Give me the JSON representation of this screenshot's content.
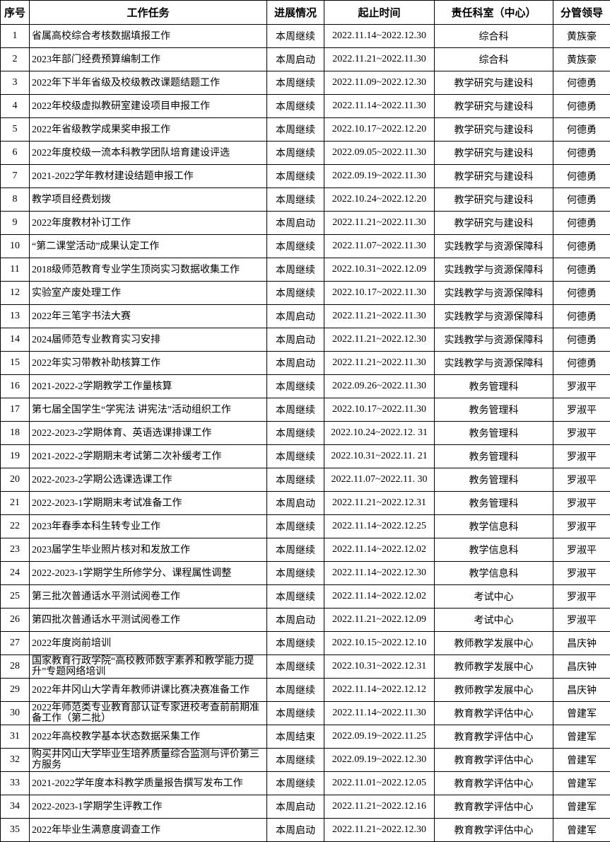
{
  "headers": [
    "序号",
    "工作任务",
    "进展情况",
    "起止时间",
    "责任科室（中心）",
    "分管领导"
  ],
  "rows": [
    [
      "1",
      "省属高校综合考核数据填报工作",
      "本周继续",
      "2022.11.14~2022.12.30",
      "综合科",
      "黄族豪"
    ],
    [
      "2",
      "2023年部门经费预算编制工作",
      "本周启动",
      "2022.11.21~2022.11.30",
      "综合科",
      "黄族豪"
    ],
    [
      "3",
      "2022年下半年省级及校级教改课题结题工作",
      "本周继续",
      "2022.11.09~2022.12.30",
      "教学研究与建设科",
      "何德勇"
    ],
    [
      "4",
      "2022年校级虚拟教研室建设项目申报工作",
      "本周继续",
      "2022.11.14~2022.11.30",
      "教学研究与建设科",
      "何德勇"
    ],
    [
      "5",
      "2022年省级教学成果奖申报工作",
      "本周继续",
      "2022.10.17~2022.12.20",
      "教学研究与建设科",
      "何德勇"
    ],
    [
      "6",
      "2022年度校级一流本科教学团队培育建设评选",
      "本周继续",
      "2022.09.05~2022.11.30",
      "教学研究与建设科",
      "何德勇"
    ],
    [
      "7",
      "2021-2022学年教材建设结题申报工作",
      "本周继续",
      "2022.09.19~2022.11.30",
      "教学研究与建设科",
      "何德勇"
    ],
    [
      "8",
      "教学项目经费划拨",
      "本周继续",
      "2022.10.24~2022.12.20",
      "教学研究与建设科",
      "何德勇"
    ],
    [
      "9",
      "2022年度教材补订工作",
      "本周启动",
      "2022.11.21~2022.11.30",
      "教学研究与建设科",
      "何德勇"
    ],
    [
      "10",
      "“第二课堂活动”成果认定工作",
      "本周继续",
      "2022.11.07~2022.11.30",
      "实践教学与资源保障科",
      "何德勇"
    ],
    [
      "11",
      "2018级师范教育专业学生顶岗实习数据收集工作",
      "本周继续",
      "2022.10.31~2022.12.09",
      "实践教学与资源保障科",
      "何德勇"
    ],
    [
      "12",
      "实验室产废处理工作",
      "本周继续",
      "2022.10.17~2022.11.30",
      "实践教学与资源保障科",
      "何德勇"
    ],
    [
      "13",
      "2022年三笔字书法大赛",
      "本周启动",
      "2022.11.21~2022.11.30",
      "实践教学与资源保障科",
      "何德勇"
    ],
    [
      "14",
      "2024届师范专业教育实习安排",
      "本周启动",
      "2022.11.21~2022.12.30",
      "实践教学与资源保障科",
      "何德勇"
    ],
    [
      "15",
      "2022年实习带教补助核算工作",
      "本周启动",
      "2022.11.21~2022.11.30",
      "实践教学与资源保障科",
      "何德勇"
    ],
    [
      "16",
      "2021-2022-2学期教学工作量核算",
      "本周继续",
      "2022.09.26~2022.11.30",
      "教务管理科",
      "罗淑平"
    ],
    [
      "17",
      "第七届全国学生“学宪法 讲宪法”活动组织工作",
      "本周继续",
      "2022.10.17~2022.11.30",
      "教务管理科",
      "罗淑平"
    ],
    [
      "18",
      "2022-2023-2学期体育、英语选课排课工作",
      "本周继续",
      "2022.10.24~2022.12. 31",
      "教务管理科",
      "罗淑平"
    ],
    [
      "19",
      "2021-2022-2学期期末考试第二次补缓考工作",
      "本周继续",
      "2022.10.31~2022.11. 21",
      "教务管理科",
      "罗淑平"
    ],
    [
      "20",
      "2022-2023-2学期公选课选课工作",
      "本周继续",
      "2022.11.07~2022.11. 30",
      "教务管理科",
      "罗淑平"
    ],
    [
      "21",
      "2022-2023-1学期期末考试准备工作",
      "本周启动",
      "2022.11.21~2022.12.31",
      "教务管理科",
      "罗淑平"
    ],
    [
      "22",
      "2023年春季本科生转专业工作",
      "本周继续",
      "2022.11.14~2022.12.25",
      "教学信息科",
      "罗淑平"
    ],
    [
      "23",
      "2023届学生毕业照片核对和发放工作",
      "本周继续",
      "2022.11.14~2022.12.02",
      "教学信息科",
      "罗淑平"
    ],
    [
      "24",
      "2022-2023-1学期学生所修学分、课程属性调整",
      "本周继续",
      "2022.11.14~2022.12.30",
      "教学信息科",
      "罗淑平"
    ],
    [
      "25",
      "第三批次普通话水平测试阅卷工作",
      "本周继续",
      "2022.11.14~2022.12.02",
      "考试中心",
      "罗淑平"
    ],
    [
      "26",
      "第四批次普通话水平测试阅卷工作",
      "本周启动",
      "2022.11.21~2022.12.09",
      "考试中心",
      "罗淑平"
    ],
    [
      "27",
      "2022年度岗前培训",
      "本周继续",
      "2022.10.15~2022.12.10",
      "教师教学发展中心",
      "昌庆钟"
    ],
    [
      "28",
      "国家教育行政学院“高校教师数字素养和教学能力提升”专题网络培训",
      "本周继续",
      "2022.10.31~2022.12.31",
      "教师教学发展中心",
      "昌庆钟"
    ],
    [
      "29",
      "2022年井冈山大学青年教师讲课比赛决赛准备工作",
      "本周继续",
      "2022.11.14~2022.12.12",
      "教师教学发展中心",
      "昌庆钟"
    ],
    [
      "30",
      "2022年师范类专业教育部认证专家进校考查前前期准备工作（第二批）",
      "本周继续",
      "2022.11.14~2022.11.30",
      "教育教学评估中心",
      "曾建军"
    ],
    [
      "31",
      "2022年高校教学基本状态数据采集工作",
      "本周结束",
      "2022.09.19~2022.11.25",
      "教育教学评估中心",
      "曾建军"
    ],
    [
      "32",
      "购买井冈山大学毕业生培养质量综合监测与评价第三方服务",
      "本周继续",
      "2022.09.19~2022.12.30",
      "教育教学评估中心",
      "曾建军"
    ],
    [
      "33",
      "2021-2022学年度本科教学质量报告撰写发布工作",
      "本周继续",
      "2022.11.01~2022.12.05",
      "教育教学评估中心",
      "曾建军"
    ],
    [
      "34",
      "2022-2023-1学期学生评教工作",
      "本周启动",
      "2022.11.21~2022.12.16",
      "教育教学评估中心",
      "曾建军"
    ],
    [
      "35",
      "2022年毕业生满意度调查工作",
      "本周启动",
      "2022.11.21~2022.12.30",
      "教育教学评估中心",
      "曾建军"
    ]
  ]
}
